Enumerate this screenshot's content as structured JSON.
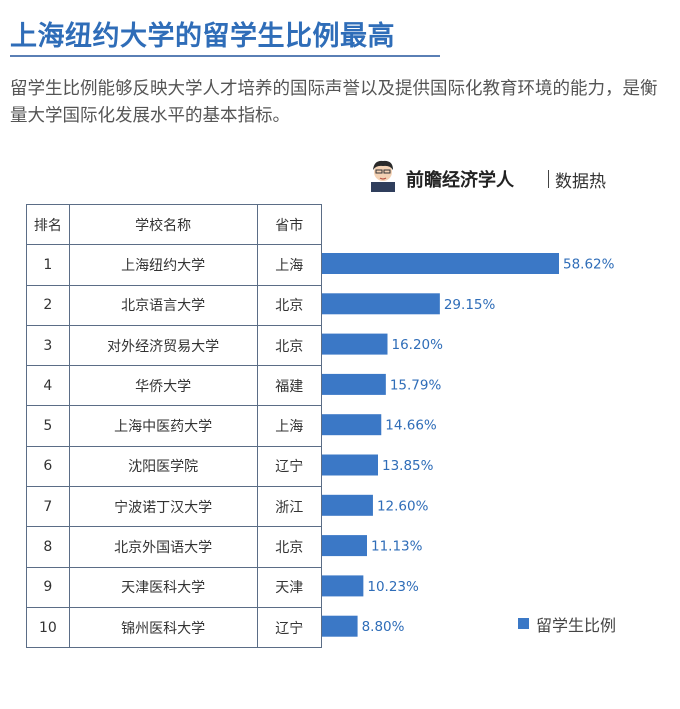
{
  "title": "上海纽约大学的留学生比例最高",
  "intro": "留学生比例能够反映大学人才培养的国际声誉以及提供国际化教育环境的能力，是衡量大学国际化发展水平的基本指标。",
  "brand": {
    "name": "前瞻经济学人",
    "tag": "数据热"
  },
  "table": {
    "headers": [
      "排名",
      "学校名称",
      "省市"
    ],
    "rows": [
      {
        "rank": "1",
        "school": "上海纽约大学",
        "city": "上海"
      },
      {
        "rank": "2",
        "school": "北京语言大学",
        "city": "北京"
      },
      {
        "rank": "3",
        "school": "对外经济贸易大学",
        "city": "北京"
      },
      {
        "rank": "4",
        "school": "华侨大学",
        "city": "福建"
      },
      {
        "rank": "5",
        "school": "上海中医药大学",
        "city": "上海"
      },
      {
        "rank": "6",
        "school": "沈阳医学院",
        "city": "辽宁"
      },
      {
        "rank": "7",
        "school": "宁波诺丁汉大学",
        "city": "浙江"
      },
      {
        "rank": "8",
        "school": "北京外国语大学",
        "city": "北京"
      },
      {
        "rank": "9",
        "school": "天津医科大学",
        "city": "天津"
      },
      {
        "rank": "10",
        "school": "锦州医科大学",
        "city": "辽宁"
      }
    ]
  },
  "chart_data": {
    "type": "bar",
    "orientation": "horizontal",
    "categories": [
      "上海纽约大学",
      "北京语言大学",
      "对外经济贸易大学",
      "华侨大学",
      "上海中医药大学",
      "沈阳医学院",
      "宁波诺丁汉大学",
      "北京外国语大学",
      "天津医科大学",
      "锦州医科大学"
    ],
    "series": [
      {
        "name": "留学生比例",
        "values": [
          58.62,
          29.15,
          16.2,
          15.79,
          14.66,
          13.85,
          12.6,
          11.13,
          10.23,
          8.8
        ]
      }
    ],
    "labels": [
      "58.62%",
      "29.15%",
      "16.20%",
      "15.79%",
      "14.66%",
      "13.85%",
      "12.60%",
      "11.13%",
      "10.23%",
      "8.80%"
    ],
    "unit": "%",
    "legend": "bottom-right",
    "grid": false,
    "bar_color": "#3b78c6"
  }
}
